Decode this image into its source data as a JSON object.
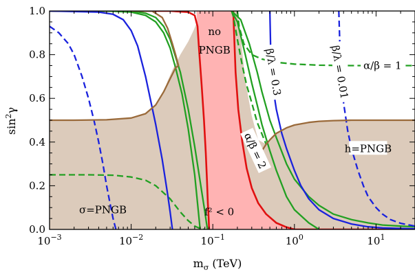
{
  "chart_data": {
    "type": "line",
    "title": "",
    "xlabel": "m",
    "xlabel_sub": "σ",
    "xlabel_unit": " (TeV)",
    "ylabel": "sin",
    "ylabel_sup": "2",
    "ylabel_var": "γ",
    "xscale": "log",
    "xlim": [
      0.001,
      30
    ],
    "ylim": [
      0,
      1
    ],
    "x_ticks": [
      {
        "value": 0.001,
        "base": "10",
        "exp": "−3"
      },
      {
        "value": 0.01,
        "base": "10",
        "exp": "−2"
      },
      {
        "value": 0.1,
        "base": "10",
        "exp": "−1"
      },
      {
        "value": 1,
        "base": "10",
        "exp": "0"
      },
      {
        "value": 10,
        "base": "10",
        "exp": "1"
      }
    ],
    "y_ticks": [
      "0.0",
      "0.2",
      "0.4",
      "0.6",
      "0.8",
      "1.0"
    ],
    "colors": {
      "region_tan": "#dccbbb",
      "region_pink": "#ffb3b3",
      "red": "#e01010",
      "green": "#22a022",
      "blue": "#1a22dd",
      "brown": "#9a6a3a"
    },
    "regions": [
      {
        "name": "sigma-pngb",
        "color": "tan",
        "boundary": [
          [
            0.001,
            0.5
          ],
          [
            0.002,
            0.5
          ],
          [
            0.005,
            0.502
          ],
          [
            0.01,
            0.51
          ],
          [
            0.015,
            0.53
          ],
          [
            0.02,
            0.57
          ],
          [
            0.025,
            0.63
          ],
          [
            0.028,
            0.68
          ],
          [
            0.032,
            0.73
          ],
          [
            0.04,
            0.8
          ],
          [
            0.05,
            0.86
          ],
          [
            0.058,
            0.91
          ],
          [
            0.066,
            0.96
          ],
          [
            0.072,
            1.0
          ]
        ]
      },
      {
        "name": "h-pngb",
        "color": "tan",
        "boundary": [
          [
            0.2,
            1.0
          ],
          [
            0.22,
            0.88
          ],
          [
            0.25,
            0.68
          ],
          [
            0.3,
            0.52
          ],
          [
            0.36,
            0.41
          ],
          [
            0.45,
            0.39
          ],
          [
            0.6,
            0.44
          ],
          [
            1,
            0.48
          ],
          [
            2,
            0.495
          ],
          [
            5,
            0.5
          ],
          [
            30,
            0.5
          ]
        ]
      },
      {
        "name": "f2-negative",
        "color": "pink",
        "left": [
          [
            0.063,
            1.0
          ],
          [
            0.068,
            0.82
          ],
          [
            0.073,
            0.66
          ],
          [
            0.078,
            0.5
          ],
          [
            0.082,
            0.35
          ],
          [
            0.085,
            0.22
          ],
          [
            0.087,
            0.12
          ],
          [
            0.089,
            0.05
          ],
          [
            0.09,
            0.0
          ]
        ],
        "right": [
          [
            0.178,
            1.0
          ],
          [
            0.19,
            0.72
          ],
          [
            0.205,
            0.55
          ],
          [
            0.23,
            0.4
          ],
          [
            0.26,
            0.28
          ],
          [
            0.3,
            0.19
          ],
          [
            0.36,
            0.12
          ],
          [
            0.45,
            0.07
          ],
          [
            0.6,
            0.03
          ],
          [
            0.8,
            0.01
          ],
          [
            1,
            0.0
          ]
        ]
      }
    ],
    "series": [
      {
        "color": "red",
        "style": "solid",
        "x": [
          0.001,
          0.01,
          0.03,
          0.05,
          0.06,
          0.065,
          0.068,
          0.073,
          0.078,
          0.082,
          0.085,
          0.087,
          0.089,
          0.09
        ],
        "y": [
          1,
          1,
          1,
          0.995,
          0.98,
          0.93,
          0.82,
          0.66,
          0.5,
          0.35,
          0.22,
          0.12,
          0.05,
          0.0
        ]
      },
      {
        "color": "red",
        "style": "solid",
        "x": [
          0.178,
          0.178,
          0.19,
          0.205,
          0.23,
          0.26,
          0.3,
          0.36,
          0.45,
          0.6,
          0.8,
          1,
          30
        ],
        "y": [
          1,
          1,
          0.72,
          0.55,
          0.4,
          0.28,
          0.19,
          0.12,
          0.07,
          0.03,
          0.01,
          0.0,
          0.0
        ]
      },
      {
        "color": "green",
        "style": "solid",
        "x": [
          0.001,
          0.005,
          0.01,
          0.015,
          0.02,
          0.025,
          0.03,
          0.035,
          0.042,
          0.05,
          0.06,
          0.07
        ],
        "y": [
          1,
          1,
          0.995,
          0.98,
          0.95,
          0.9,
          0.83,
          0.74,
          0.62,
          0.46,
          0.25,
          0.0
        ]
      },
      {
        "color": "green",
        "style": "solid",
        "x": [
          0.001,
          0.01,
          0.015,
          0.02,
          0.025,
          0.03,
          0.04,
          0.05,
          0.06,
          0.07,
          0.08,
          0.086
        ],
        "y": [
          1,
          1,
          0.99,
          0.97,
          0.93,
          0.87,
          0.72,
          0.55,
          0.38,
          0.22,
          0.08,
          0.0
        ]
      },
      {
        "color": "green",
        "style": "solid",
        "x": [
          0.17,
          0.2,
          0.25,
          0.3,
          0.35,
          0.4,
          0.5,
          0.6,
          0.8,
          1,
          1.5,
          2
        ],
        "y": [
          1,
          0.95,
          0.8,
          0.67,
          0.57,
          0.48,
          0.36,
          0.27,
          0.15,
          0.09,
          0.03,
          0.0
        ]
      },
      {
        "color": "green",
        "style": "solid",
        "x": [
          0.17,
          0.22,
          0.28,
          0.35,
          0.4,
          0.5,
          0.6,
          0.8,
          1,
          1.5,
          2,
          3,
          5,
          8,
          12,
          20,
          30
        ],
        "y": [
          1,
          0.96,
          0.85,
          0.72,
          0.63,
          0.5,
          0.42,
          0.3,
          0.23,
          0.15,
          0.11,
          0.07,
          0.045,
          0.03,
          0.02,
          0.015,
          0.012
        ]
      },
      {
        "color": "green",
        "style": "dashed",
        "x": [
          0.001,
          0.003,
          0.006,
          0.01,
          0.015,
          0.02,
          0.03,
          0.04,
          0.05,
          0.06,
          0.07,
          0.08
        ],
        "y": [
          0.25,
          0.25,
          0.248,
          0.24,
          0.225,
          0.2,
          0.14,
          0.08,
          0.04,
          0.015,
          0.004,
          0.0
        ]
      },
      {
        "color": "green",
        "style": "dashed",
        "x": [
          0.17,
          0.18,
          0.2,
          0.23,
          0.26,
          0.3,
          0.35,
          0.45
        ],
        "y": [
          1,
          0.97,
          0.87,
          0.75,
          0.66,
          0.58,
          0.49,
          0.39
        ]
      },
      {
        "color": "green",
        "style": "dashed",
        "x": [
          0.2,
          0.21,
          0.24,
          0.3,
          0.4,
          0.6,
          1,
          2,
          5,
          10,
          30
        ],
        "y": [
          1,
          0.93,
          0.85,
          0.8,
          0.78,
          0.765,
          0.757,
          0.752,
          0.75,
          0.75,
          0.75
        ]
      },
      {
        "color": "blue",
        "style": "solid",
        "x": [
          0.001,
          0.004,
          0.006,
          0.008,
          0.01,
          0.012,
          0.015,
          0.02,
          0.024,
          0.028,
          0.03,
          0.032
        ],
        "y": [
          1,
          0.995,
          0.985,
          0.96,
          0.91,
          0.84,
          0.7,
          0.48,
          0.32,
          0.16,
          0.08,
          0.0
        ]
      },
      {
        "color": "blue",
        "style": "solid",
        "x": [
          0.5,
          0.5,
          0.52,
          0.6,
          0.7,
          0.8,
          1,
          1.2,
          1.5,
          2,
          3,
          5,
          8,
          12,
          20,
          30
        ],
        "y": [
          1,
          1,
          0.7,
          0.55,
          0.44,
          0.37,
          0.27,
          0.2,
          0.14,
          0.09,
          0.05,
          0.025,
          0.012,
          0.007,
          0.004,
          0.003
        ]
      },
      {
        "color": "blue",
        "style": "dashed",
        "x": [
          0.001,
          0.0013,
          0.0017,
          0.002,
          0.0025,
          0.003,
          0.0035,
          0.004,
          0.0045,
          0.005,
          0.0055,
          0.006,
          0.0065
        ],
        "y": [
          0.93,
          0.9,
          0.85,
          0.8,
          0.7,
          0.6,
          0.5,
          0.4,
          0.3,
          0.2,
          0.12,
          0.05,
          0.0
        ]
      },
      {
        "color": "blue",
        "style": "dashed",
        "x": [
          3.5,
          3.5,
          3.7,
          4,
          4.5,
          5,
          6,
          7,
          8,
          10,
          12,
          15,
          20,
          30
        ],
        "y": [
          1,
          1,
          0.7,
          0.58,
          0.45,
          0.37,
          0.27,
          0.2,
          0.15,
          0.1,
          0.07,
          0.045,
          0.028,
          0.015
        ]
      },
      {
        "color": "brown",
        "style": "solid",
        "x": [
          0.001,
          0.002,
          0.005,
          0.01,
          0.015,
          0.02,
          0.025,
          0.03,
          0.035,
          0.038
        ],
        "y": [
          0.5,
          0.5,
          0.502,
          0.51,
          0.53,
          0.57,
          0.63,
          0.69,
          0.74,
          0.75
        ]
      },
      {
        "color": "brown",
        "style": "solid",
        "x": [
          0.038,
          0.035,
          0.032,
          0.028,
          0.024,
          0.018,
          0.014,
          0.01
        ],
        "y": [
          0.75,
          0.8,
          0.85,
          0.92,
          0.97,
          1.0,
          1.0,
          1.0
        ]
      },
      {
        "color": "brown",
        "style": "solid",
        "x": [
          0.36,
          0.4,
          0.45,
          0.5,
          0.6,
          0.8,
          1,
          1.5,
          2,
          3,
          5,
          8,
          12,
          20,
          30
        ],
        "y": [
          0.34,
          0.36,
          0.39,
          0.41,
          0.44,
          0.465,
          0.478,
          0.49,
          0.495,
          0.498,
          0.5,
          0.5,
          0.5,
          0.5,
          0.5
        ]
      }
    ],
    "annotations": [
      {
        "text": "no",
        "x": 0.105,
        "y": 0.905,
        "angle": 0
      },
      {
        "text": "PNGB",
        "x": 0.105,
        "y": 0.82,
        "angle": 0
      },
      {
        "text": "f² < 0",
        "x": 0.12,
        "y": 0.08,
        "angle": 0
      },
      {
        "text": "σ=PNGB",
        "x": 0.0045,
        "y": 0.09,
        "angle": 0
      },
      {
        "text": "h=PNGB",
        "x": 8,
        "y": 0.37,
        "angle": 0
      },
      {
        "text": "α/β = 1",
        "x": 12,
        "y": 0.75,
        "angle": 0
      },
      {
        "text": "β/λ = 0.3",
        "x": 0.55,
        "y": 0.72,
        "angle": 80
      },
      {
        "text": "β/λ = 0.01",
        "x": 3.6,
        "y": 0.72,
        "angle": 80
      },
      {
        "text": "α/β = 2",
        "x": 0.33,
        "y": 0.36,
        "angle": 65
      }
    ]
  }
}
